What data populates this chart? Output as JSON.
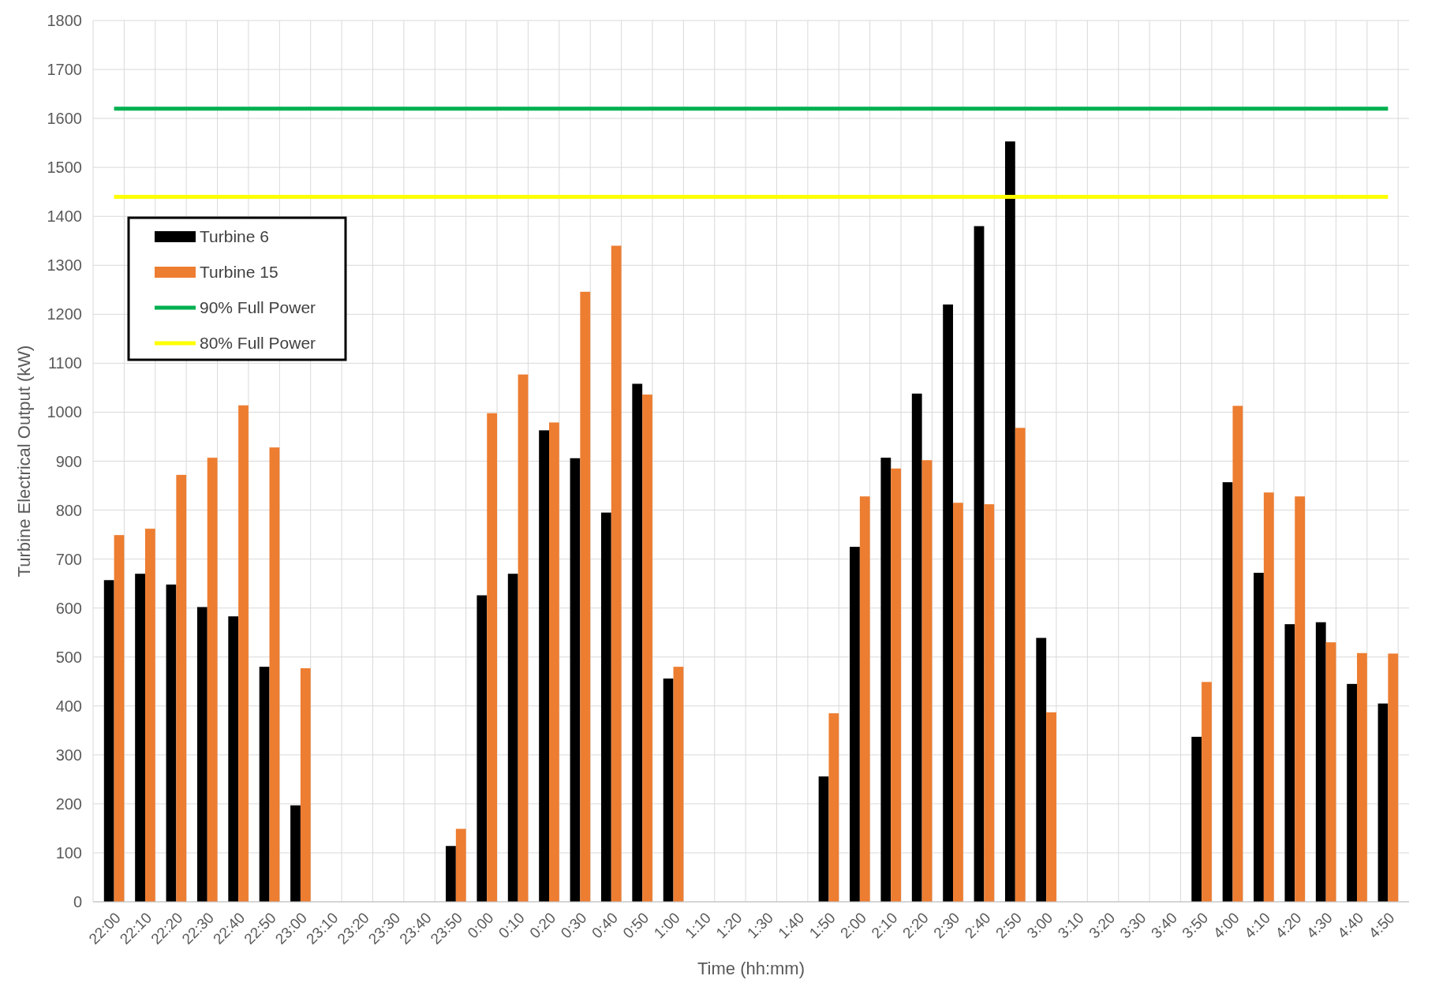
{
  "chart_data": {
    "type": "bar",
    "xlabel": "Time (hh:mm)",
    "ylabel": "Turbine Electrical Output (kW)",
    "categories": [
      "22:00",
      "22:10",
      "22:20",
      "22:30",
      "22:40",
      "22:50",
      "23:00",
      "23:10",
      "23:20",
      "23:30",
      "23:40",
      "23:50",
      "0:00",
      "0:10",
      "0:20",
      "0:30",
      "0:40",
      "0:50",
      "1:00",
      "1:10",
      "1:20",
      "1:30",
      "1:40",
      "1:50",
      "2:00",
      "2:10",
      "2:20",
      "2:30",
      "2:40",
      "2:50",
      "3:00",
      "3:10",
      "3:20",
      "3:30",
      "3:40",
      "3:50",
      "4:00",
      "4:10",
      "4:20",
      "4:30",
      "4:40",
      "4:50"
    ],
    "series": [
      {
        "name": "Turbine 6",
        "color": "#000000",
        "values": [
          657,
          670,
          648,
          602,
          583,
          480,
          197,
          0,
          0,
          0,
          0,
          114,
          626,
          670,
          963,
          906,
          795,
          1058,
          456,
          0,
          0,
          0,
          0,
          256,
          725,
          907,
          1038,
          1220,
          1380,
          1553,
          539,
          0,
          0,
          0,
          0,
          337,
          857,
          672,
          567,
          571,
          445,
          405
        ]
      },
      {
        "name": "Turbine 15",
        "color": "#ed7d31",
        "values": [
          749,
          762,
          872,
          907,
          1014,
          928,
          477,
          0,
          0,
          0,
          0,
          149,
          998,
          1077,
          979,
          1246,
          1340,
          1036,
          480,
          0,
          0,
          0,
          0,
          385,
          828,
          885,
          902,
          815,
          812,
          968,
          387,
          0,
          0,
          0,
          0,
          449,
          1013,
          836,
          828,
          530,
          508,
          507
        ]
      },
      {
        "name": "90% Full Power",
        "type": "line",
        "color": "#00b050",
        "values": [
          1620,
          1620,
          1620,
          1620,
          1620,
          1620,
          1620,
          1620,
          1620,
          1620,
          1620,
          1620,
          1620,
          1620,
          1620,
          1620,
          1620,
          1620,
          1620,
          1620,
          1620,
          1620,
          1620,
          1620,
          1620,
          1620,
          1620,
          1620,
          1620,
          1620,
          1620,
          1620,
          1620,
          1620,
          1620,
          1620,
          1620,
          1620,
          1620,
          1620,
          1620,
          1620
        ]
      },
      {
        "name": "80% Full Power",
        "type": "line",
        "color": "#ffff00",
        "values": [
          1440,
          1440,
          1440,
          1440,
          1440,
          1440,
          1440,
          1440,
          1440,
          1440,
          1440,
          1440,
          1440,
          1440,
          1440,
          1440,
          1440,
          1440,
          1440,
          1440,
          1440,
          1440,
          1440,
          1440,
          1440,
          1440,
          1440,
          1440,
          1440,
          1440,
          1440,
          1440,
          1440,
          1440,
          1440,
          1440,
          1440,
          1440,
          1440,
          1440,
          1440,
          1440
        ]
      }
    ],
    "ylim": [
      0,
      1800
    ],
    "yticks": [
      0,
      100,
      200,
      300,
      400,
      500,
      600,
      700,
      800,
      900,
      1000,
      1100,
      1200,
      1300,
      1400,
      1500,
      1600,
      1700,
      1800
    ],
    "grid": true,
    "legend": "top left",
    "marker": "none"
  }
}
